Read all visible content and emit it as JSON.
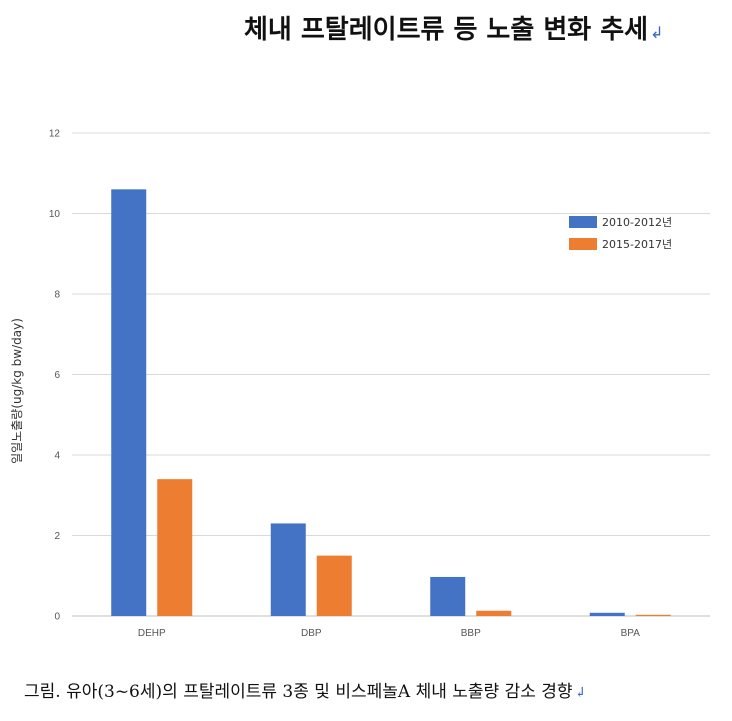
{
  "page": {
    "title": "체내 프탈레이트류 등 노출 변화 추세",
    "title_end_mark": "↲",
    "caption": "그림. 유아(3~6세)의 프탈레이트류 3종 및 비스페놀A 체내 노출량 감소 경향",
    "caption_end_mark": "↲"
  },
  "chart_data": {
    "type": "bar",
    "title": "",
    "xlabel": "",
    "ylabel": "일일노출량(ug/kg bw/day)",
    "ylim": [
      0,
      12
    ],
    "yticks": [
      0,
      2,
      4,
      6,
      8,
      10,
      12
    ],
    "grid": true,
    "legend_position": "top-right",
    "categories": [
      "DEHP",
      "DBP",
      "BBP",
      "BPA"
    ],
    "series": [
      {
        "name": "2010-2012년",
        "color": "#4472c4",
        "values": [
          10.6,
          2.3,
          0.97,
          0.08
        ]
      },
      {
        "name": "2015-2017년",
        "color": "#ed7d31",
        "values": [
          3.4,
          1.5,
          0.13,
          0.03
        ]
      }
    ]
  }
}
